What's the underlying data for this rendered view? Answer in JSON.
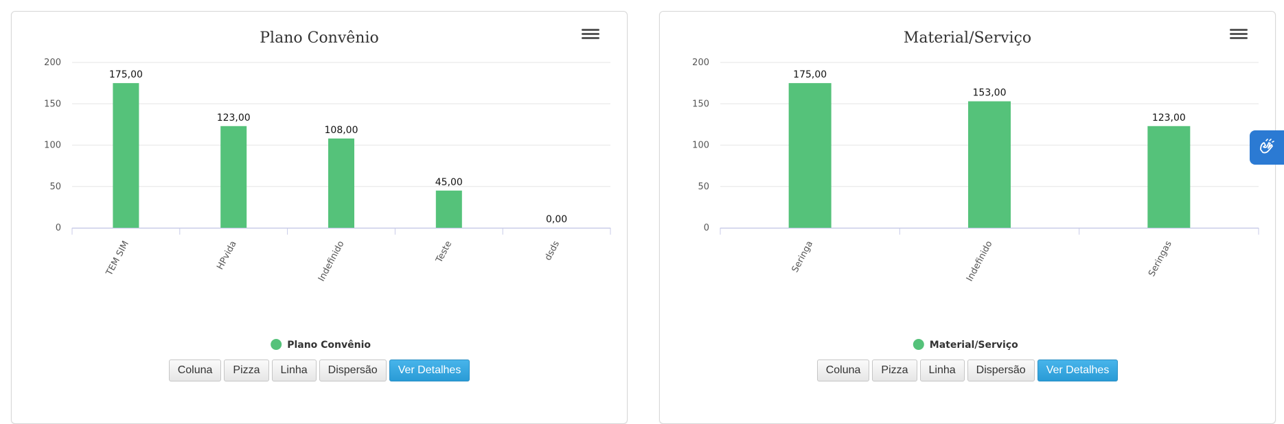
{
  "colors": {
    "bar": "#55c27a",
    "grid": "#e6e6e6",
    "axis": "#c8cbe8",
    "primary_button": "#2a9bd6",
    "widget": "#2b7ad3"
  },
  "panels": [
    {
      "menu_icon": "hamburger-menu-icon",
      "buttons": {
        "coluna": "Coluna",
        "pizza": "Pizza",
        "linha": "Linha",
        "dispersao": "Dispersão",
        "ver_detalhes": "Ver Detalhes"
      }
    },
    {
      "menu_icon": "hamburger-menu-icon",
      "buttons": {
        "coluna": "Coluna",
        "pizza": "Pizza",
        "linha": "Linha",
        "dispersao": "Dispersão",
        "ver_detalhes": "Ver Detalhes"
      }
    }
  ],
  "accessibility_widget": {
    "icon": "sign-language-hands-icon"
  },
  "chart_data": [
    {
      "type": "bar",
      "title": "Plano Convênio",
      "categories": [
        "TEM SIM",
        "HPvida",
        "Indefinido",
        "Teste",
        "dsds"
      ],
      "series": [
        {
          "name": "Plano Convênio",
          "values": [
            175,
            123,
            108,
            45,
            0
          ]
        }
      ],
      "data_labels": [
        "175,00",
        "123,00",
        "108,00",
        "45,00",
        "0,00"
      ],
      "y_ticks": [
        "0",
        "50",
        "100",
        "150",
        "200"
      ],
      "ylim": [
        0,
        200
      ],
      "grid": true,
      "legend_position": "bottom-center"
    },
    {
      "type": "bar",
      "title": "Material/Serviço",
      "categories": [
        "Seringa",
        "Indefinido",
        "Seringas"
      ],
      "series": [
        {
          "name": "Material/Serviço",
          "values": [
            175,
            153,
            123
          ]
        }
      ],
      "data_labels": [
        "175,00",
        "153,00",
        "123,00"
      ],
      "y_ticks": [
        "0",
        "50",
        "100",
        "150",
        "200"
      ],
      "ylim": [
        0,
        200
      ],
      "grid": true,
      "legend_position": "bottom-center"
    }
  ]
}
